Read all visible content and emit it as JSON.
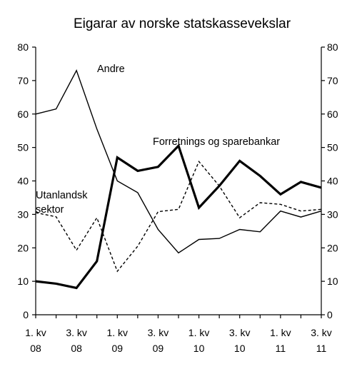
{
  "chart_data": {
    "type": "line",
    "title": "Eigarar av norske statskassevekslar",
    "x_tick_labels": [
      {
        "index": 0,
        "line1": "1. kv",
        "line2": "08"
      },
      {
        "index": 2,
        "line1": "3. kv",
        "line2": "08"
      },
      {
        "index": 4,
        "line1": "1. kv",
        "line2": "09"
      },
      {
        "index": 6,
        "line1": "3. kv",
        "line2": "09"
      },
      {
        "index": 8,
        "line1": "1. kv",
        "line2": "10"
      },
      {
        "index": 10,
        "line1": "3. kv",
        "line2": "10"
      },
      {
        "index": 12,
        "line1": "1. kv",
        "line2": "11"
      },
      {
        "index": 14,
        "line1": "3. kv",
        "line2": "11"
      }
    ],
    "ylim": [
      0,
      80
    ],
    "yticks": [
      0,
      10,
      20,
      30,
      40,
      50,
      60,
      70,
      80
    ],
    "secondary_yticks": [
      0,
      10,
      20,
      30,
      40,
      50,
      60,
      70,
      80
    ],
    "grid": false,
    "series": [
      {
        "name": "Andre",
        "style": "thin-solid",
        "values": [
          60,
          61.5,
          73,
          55.5,
          40,
          36.5,
          25.5,
          18.5,
          22.5,
          22.8,
          25.5,
          24.8,
          31,
          29.2,
          31
        ]
      },
      {
        "name": "Forretnings og sparebankar",
        "style": "thick-solid",
        "values": [
          10,
          9.3,
          8,
          16,
          47,
          43,
          44.2,
          50.5,
          32,
          38.5,
          46,
          41.5,
          36,
          39.7,
          38
        ]
      },
      {
        "name": "Utanlandsk sektor",
        "label_lines": [
          "Utanlandsk",
          "sektor"
        ],
        "style": "dashed",
        "values": [
          30.5,
          29.3,
          19.3,
          29,
          13,
          20.5,
          30.8,
          31.5,
          45.8,
          38.5,
          29,
          33.5,
          33,
          31,
          31.5
        ]
      }
    ]
  }
}
